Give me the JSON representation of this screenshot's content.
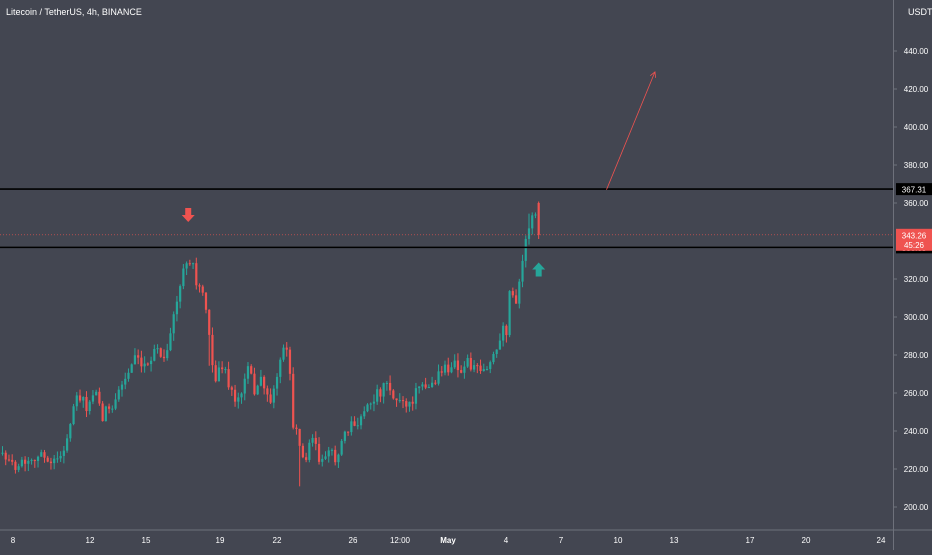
{
  "header": {
    "title": "Litecoin / TetherUS, 4h, BINANCE",
    "currency": "USDT"
  },
  "colors": {
    "background": "#434651",
    "up": "#26a69a",
    "down": "#ef5350",
    "level_line": "#000000",
    "price_line": "#ef5350",
    "text": "#ffffff"
  },
  "chart_data": {
    "type": "candlestick",
    "title": "Litecoin / TetherUS, 4h, BINANCE",
    "ylabel": "USDT",
    "ylim": [
      190,
      455
    ],
    "y_ticks": [
      "440.00",
      "420.00",
      "400.00",
      "380.00",
      "360.00",
      "320.00",
      "300.00",
      "280.00",
      "260.00",
      "240.00",
      "220.00",
      "200.00"
    ],
    "x_ticks": [
      "8",
      "12",
      "15",
      "19",
      "22",
      "26",
      "12:00",
      "May",
      "4",
      "7",
      "10",
      "13",
      "17",
      "20",
      "24"
    ],
    "close_path": [
      [
        0,
        232
      ],
      [
        2,
        222
      ],
      [
        6,
        224
      ],
      [
        10,
        227
      ],
      [
        14,
        226
      ],
      [
        17,
        224
      ],
      [
        20,
        236
      ],
      [
        23,
        258
      ],
      [
        26,
        253
      ],
      [
        29,
        258
      ],
      [
        31,
        247
      ],
      [
        35,
        258
      ],
      [
        38,
        268
      ],
      [
        41,
        277
      ],
      [
        44,
        272
      ],
      [
        47,
        284
      ],
      [
        50,
        279
      ],
      [
        52,
        292
      ],
      [
        55,
        316
      ],
      [
        57,
        331
      ],
      [
        58.5,
        332
      ],
      [
        60,
        318
      ],
      [
        62,
        312
      ],
      [
        64,
        289
      ],
      [
        66,
        267
      ],
      [
        68,
        275
      ],
      [
        70,
        266
      ],
      [
        72,
        255
      ],
      [
        74,
        260
      ],
      [
        76,
        272
      ],
      [
        78,
        262
      ],
      [
        80,
        268
      ],
      [
        82,
        257
      ],
      [
        84,
        259
      ],
      [
        86,
        278
      ],
      [
        88,
        283
      ],
      [
        89,
        270
      ],
      [
        90,
        245
      ],
      [
        92,
        231
      ],
      [
        94,
        225
      ],
      [
        96,
        236
      ],
      [
        98,
        225
      ],
      [
        100,
        224
      ],
      [
        102,
        230
      ],
      [
        103,
        227
      ],
      [
        104,
        227
      ],
      [
        106,
        237
      ],
      [
        108,
        242
      ],
      [
        111,
        248
      ],
      [
        114,
        257
      ],
      [
        117,
        260
      ],
      [
        119,
        264
      ],
      [
        121,
        256
      ],
      [
        123,
        257
      ],
      [
        126,
        254
      ],
      [
        128,
        260
      ],
      [
        130,
        262
      ],
      [
        133,
        265
      ],
      [
        136,
        272
      ],
      [
        138,
        274
      ],
      [
        140,
        276
      ],
      [
        142,
        272
      ],
      [
        144,
        276
      ],
      [
        147,
        271
      ],
      [
        149,
        271
      ],
      [
        151,
        276
      ],
      [
        153,
        284
      ],
      [
        155,
        298
      ],
      [
        156,
        288
      ],
      [
        157,
        315
      ],
      [
        159,
        310
      ],
      [
        161,
        330
      ],
      [
        163,
        348
      ],
      [
        164.5,
        358
      ],
      [
        166,
        343.26
      ]
    ],
    "levels": [
      367.31,
      336.65
    ],
    "last_price": 343.26,
    "countdown": "45:26",
    "annotations": [
      {
        "type": "arrow-down",
        "color": "red",
        "bar": 57.5,
        "value": 350
      },
      {
        "type": "arrow-up",
        "color": "green",
        "bar": 166,
        "value": 325
      },
      {
        "type": "trend-line",
        "color": "red",
        "from": [
          187,
          367
        ],
        "to": [
          202,
          429
        ]
      }
    ]
  }
}
